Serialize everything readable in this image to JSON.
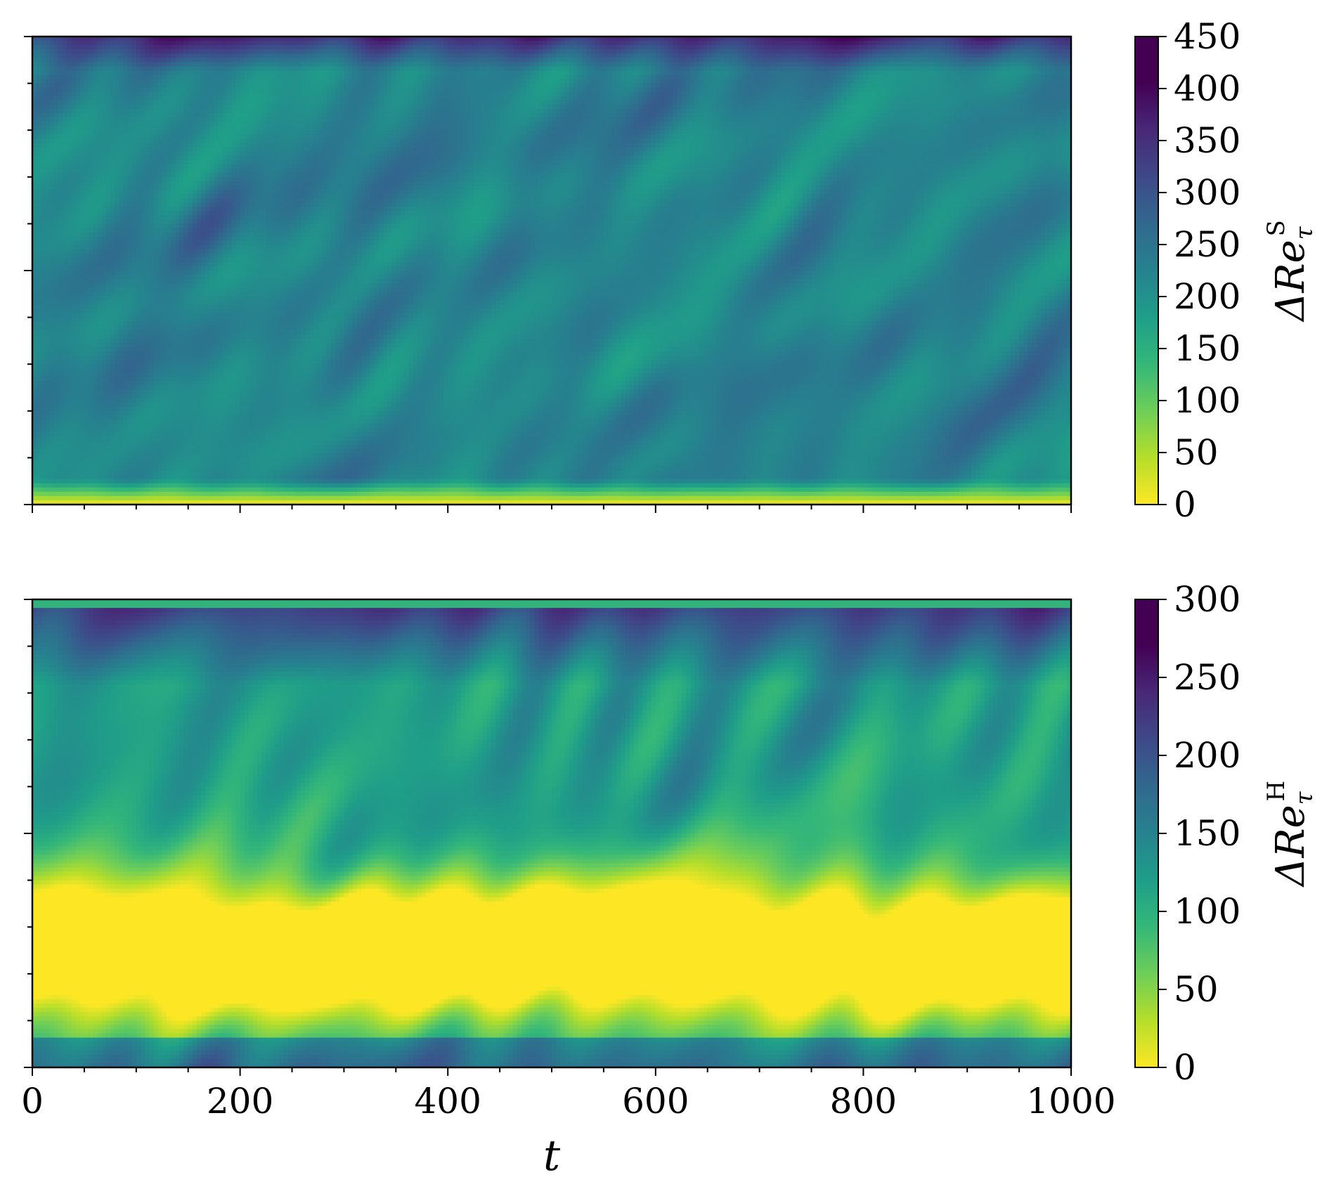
{
  "chart_data": [
    {
      "type": "heatmap",
      "panel": "top",
      "title": "",
      "xlabel": "",
      "ylabel": "",
      "xlim": [
        0,
        1000
      ],
      "x_ticks_major": [
        0,
        200,
        400,
        600,
        800,
        1000
      ],
      "x_tick_labels_visible": false,
      "y_tick_labels_visible": false,
      "colormap": "viridis_r",
      "colorbar": {
        "label_symbol": "ΔRe",
        "label_superscript": "S",
        "label_subscript": "τ",
        "range": [
          0,
          450
        ],
        "ticks": [
          "0",
          "50",
          "100",
          "150",
          "200",
          "250",
          "300",
          "350",
          "400",
          "450"
        ]
      },
      "description_stats": {
        "dominant_value": 250,
        "bottom_edge_value": 20,
        "top_edge_value": 420
      }
    },
    {
      "type": "heatmap",
      "panel": "bottom",
      "title": "",
      "xlabel": "t",
      "ylabel": "",
      "xlim": [
        0,
        1000
      ],
      "x_ticks_major": [
        0,
        200,
        400,
        600,
        800,
        1000
      ],
      "x_tick_labels": [
        "0",
        "200",
        "400",
        "600",
        "800",
        "1000"
      ],
      "y_tick_labels_visible": false,
      "colormap": "viridis_r",
      "colorbar": {
        "label_symbol": "ΔRe",
        "label_superscript": "H",
        "label_subscript": "τ",
        "range": [
          0,
          300
        ],
        "ticks": [
          "0",
          "50",
          "100",
          "150",
          "200",
          "250",
          "300"
        ]
      },
      "description_stats": {
        "dominant_value": 120,
        "yellow_band_value": 10,
        "top_edge_value": 260
      }
    }
  ]
}
